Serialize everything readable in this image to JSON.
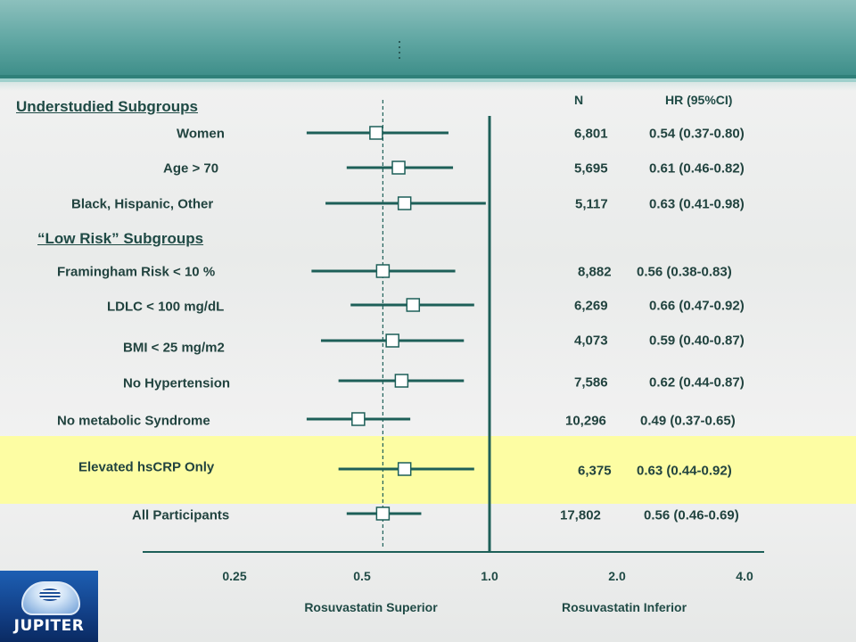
{
  "header": {
    "brand": "JUPITER"
  },
  "columns": {
    "n": "N",
    "hr": "HR (95%CI)"
  },
  "sections": [
    {
      "label": "Understudied Subgroups"
    },
    {
      "label": "“Low Risk” Subgroups"
    }
  ],
  "rows": [
    {
      "label": "Women",
      "n": "6,801",
      "hr_text": "0.54 (0.37-0.80)",
      "highlight": false
    },
    {
      "label": "Age > 70",
      "n": "5,695",
      "hr_text": "0.61 (0.46-0.82)",
      "highlight": false
    },
    {
      "label": "Black, Hispanic, Other",
      "n": "5,117",
      "hr_text": "0.63 (0.41-0.98)",
      "highlight": false
    },
    {
      "label": "Framingham Risk < 10 %",
      "n": "8,882",
      "hr_text": "0.56 (0.38-0.83)",
      "highlight": false
    },
    {
      "label": "LDLC < 100 mg/dL",
      "n": "6,269",
      "hr_text": "0.66 (0.47-0.92)",
      "highlight": false
    },
    {
      "label": "BMI < 25 mg/m2",
      "n": "4,073",
      "hr_text": "0.59 (0.40-0.87)",
      "highlight": false
    },
    {
      "label": "No Hypertension",
      "n": "7,586",
      "hr_text": "0.62 (0.44-0.87)",
      "highlight": false
    },
    {
      "label": "No metabolic Syndrome",
      "n": "10,296",
      "hr_text": "0.49 (0.37-0.65)",
      "highlight": false
    },
    {
      "label": "Elevated hsCRP Only",
      "n": "6,375",
      "hr_text": "0.63 (0.44-0.92)",
      "highlight": true
    },
    {
      "label": "All Participants",
      "n": "17,802",
      "hr_text": "0.56 (0.46-0.69)",
      "highlight": false
    }
  ],
  "axis": {
    "caption_left": "Rosuvastatin Superior",
    "caption_right": "Rosuvastatin Inferior"
  },
  "colors": {
    "line": "#1d5f58",
    "highlight": "#fdfda3",
    "header": "#5fa6a2"
  },
  "chart_data": {
    "type": "forest",
    "scale": "log2",
    "xlim": [
      0.25,
      4.0
    ],
    "ticks": [
      {
        "value": 0.25,
        "label": "0.25"
      },
      {
        "value": 0.5,
        "label": "0.5"
      },
      {
        "value": 1.0,
        "label": "1.0"
      },
      {
        "value": 2.0,
        "label": "2.0"
      },
      {
        "value": 4.0,
        "label": "4.0"
      }
    ],
    "reference_value": 1.0,
    "overall_dashed_value": 0.56,
    "series": [
      {
        "name": "Women",
        "hr": 0.54,
        "lo": 0.37,
        "hi": 0.8
      },
      {
        "name": "Age > 70",
        "hr": 0.61,
        "lo": 0.46,
        "hi": 0.82
      },
      {
        "name": "Black, Hispanic, Other",
        "hr": 0.63,
        "lo": 0.41,
        "hi": 0.98
      },
      {
        "name": "Framingham Risk < 10 %",
        "hr": 0.56,
        "lo": 0.38,
        "hi": 0.83
      },
      {
        "name": "LDLC < 100 mg/dL",
        "hr": 0.66,
        "lo": 0.47,
        "hi": 0.92
      },
      {
        "name": "BMI < 25 mg/m2",
        "hr": 0.59,
        "lo": 0.4,
        "hi": 0.87
      },
      {
        "name": "No Hypertension",
        "hr": 0.62,
        "lo": 0.44,
        "hi": 0.87
      },
      {
        "name": "No metabolic Syndrome",
        "hr": 0.49,
        "lo": 0.37,
        "hi": 0.65
      },
      {
        "name": "Elevated hsCRP Only",
        "hr": 0.63,
        "lo": 0.44,
        "hi": 0.92
      },
      {
        "name": "All Participants",
        "hr": 0.56,
        "lo": 0.46,
        "hi": 0.69
      }
    ]
  }
}
